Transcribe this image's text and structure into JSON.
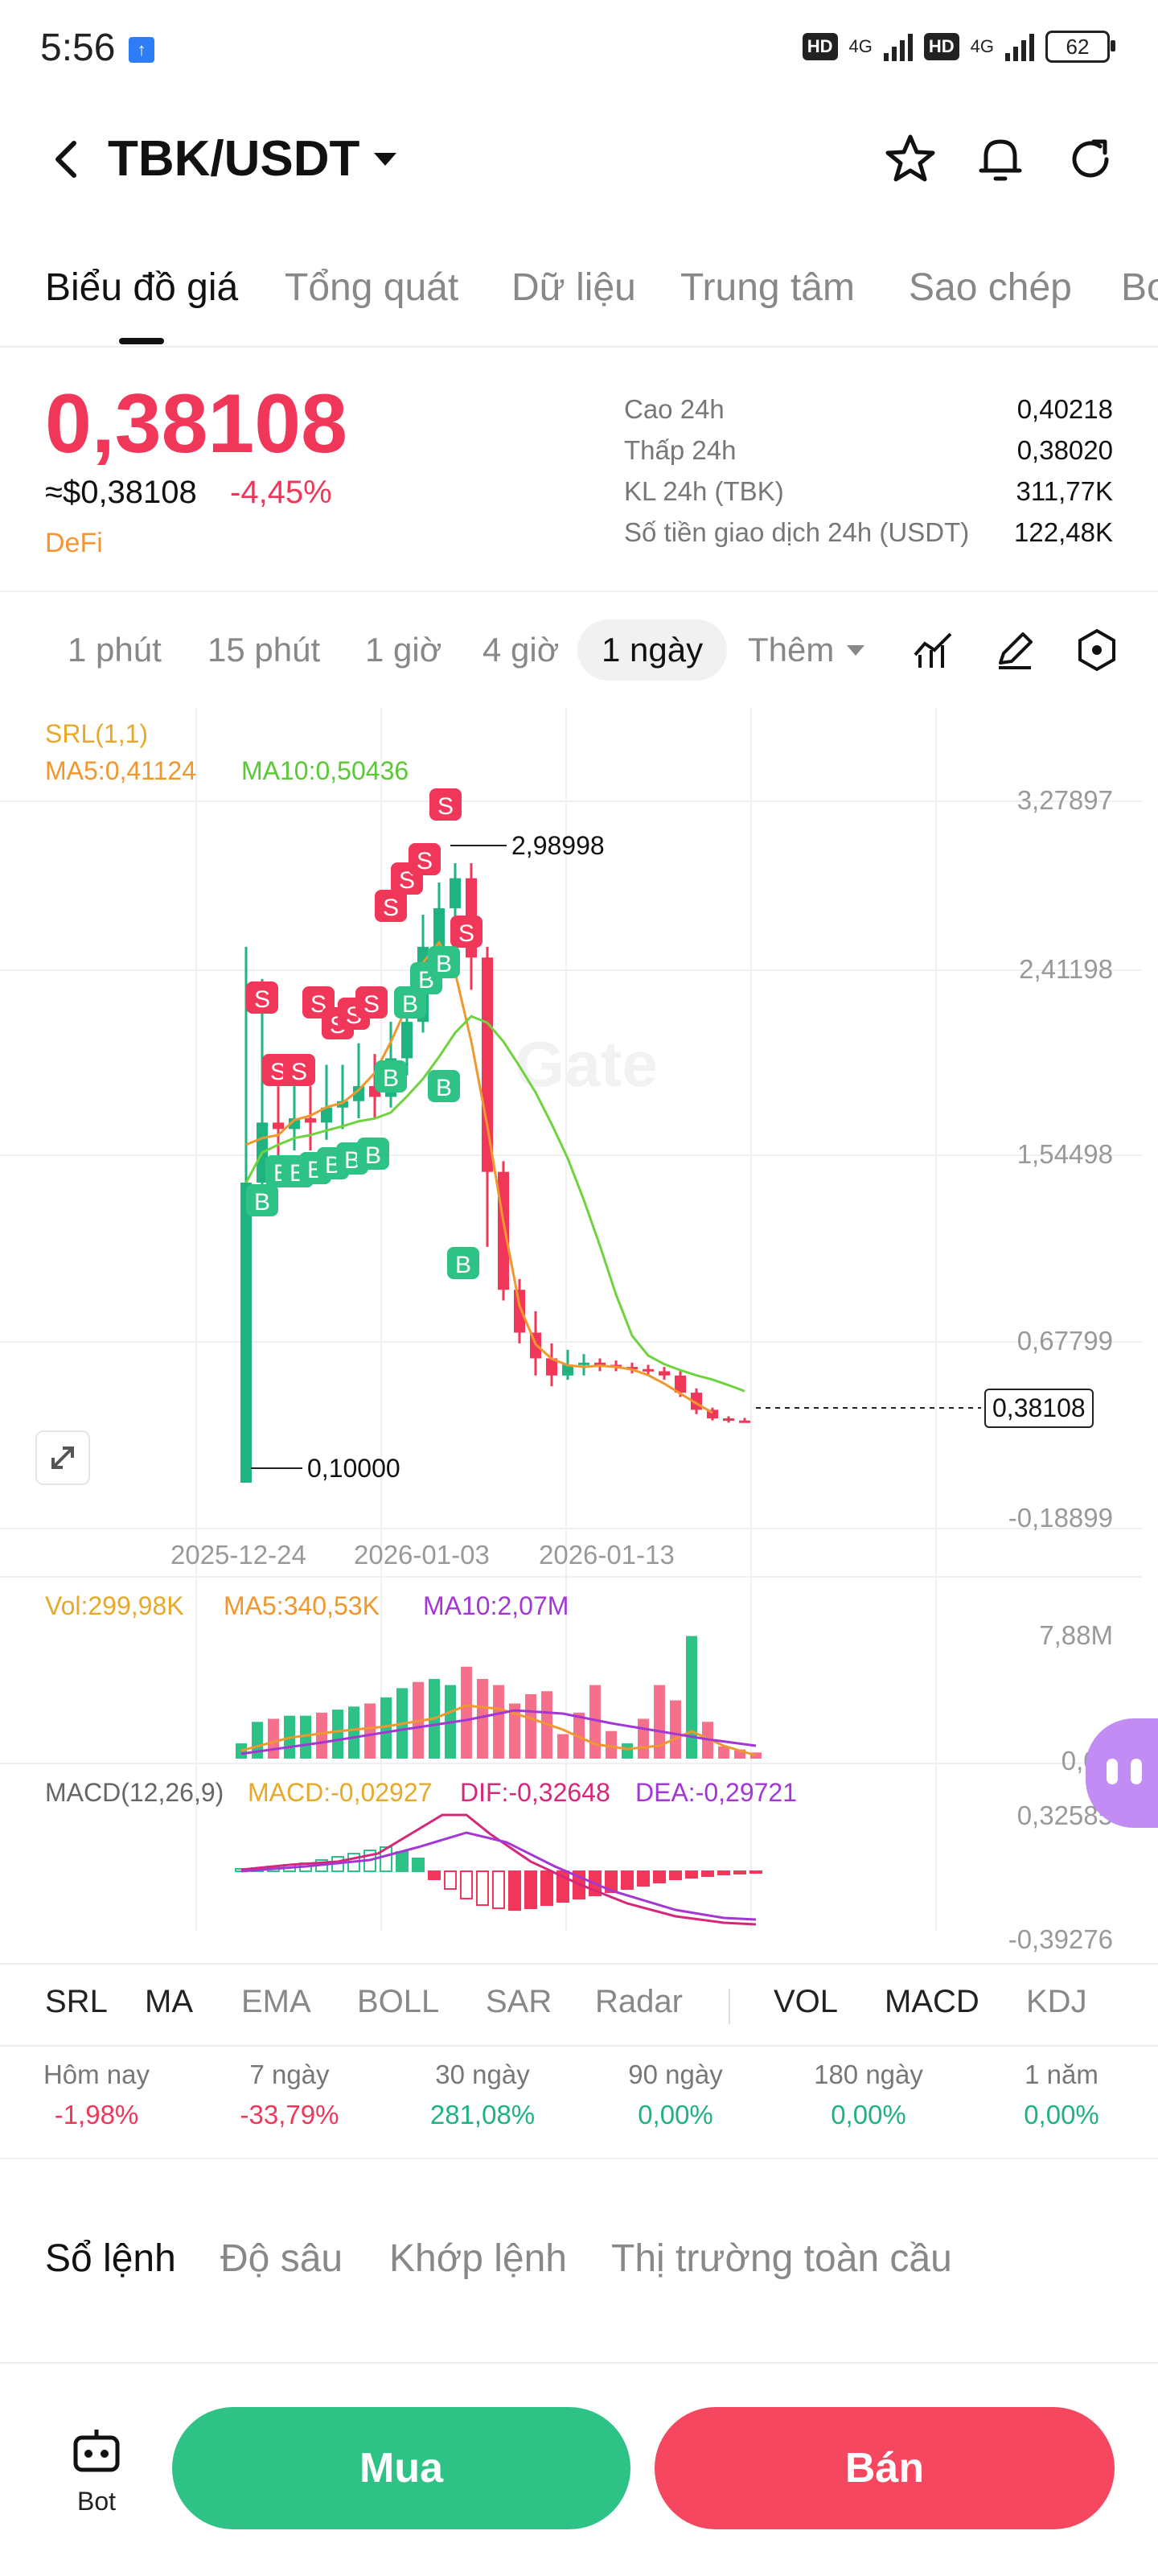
{
  "status_bar": {
    "time": "5:56",
    "network1": "4G",
    "network2": "4G",
    "hd": "HD",
    "battery": "62"
  },
  "header": {
    "pair": "TBK/USDT"
  },
  "tabs": [
    "Biểu đồ giá",
    "Tổng quát",
    "Dữ liệu",
    "Trung tâm",
    "Sao chép",
    "Bo"
  ],
  "ticker": {
    "price": "0,38108",
    "usd": "≈$0,38108",
    "change": "-4,45%",
    "tag": "DeFi",
    "stats": [
      {
        "label": "Cao 24h",
        "value": "0,40218"
      },
      {
        "label": "Thấp 24h",
        "value": "0,38020"
      },
      {
        "label": "KL 24h (TBK)",
        "value": "311,77K"
      },
      {
        "label": "Số tiền giao dịch 24h (USDT)",
        "value": "122,48K"
      }
    ]
  },
  "intervals": [
    "1 phút",
    "15 phút",
    "1 giờ",
    "4 giờ",
    "1 ngày",
    "Thêm"
  ],
  "chart": {
    "legend": {
      "srl": "SRL(1,1)",
      "ma5": "MA5:0,41124",
      "ma10": "MA10:0,50436"
    },
    "y_ticks": [
      "3,27897",
      "2,41198",
      "1,54498",
      "0,67799",
      "-0,18899"
    ],
    "x_ticks": [
      "2025-12-24",
      "2026-01-03",
      "2026-01-13"
    ],
    "high_label": "2,98998",
    "low_label": "0,10000",
    "last_price": "0,38108",
    "watermark": "Gate",
    "colors": {
      "up": "#1fb37f",
      "down": "#f0375a",
      "ma5": "#f0972e",
      "ma10": "#6fd33f"
    }
  },
  "chart_data": {
    "type": "candlestick",
    "x_ticks": [
      "2025-12-24",
      "2026-01-03",
      "2026-01-13"
    ],
    "ylim": [
      -0.18899,
      3.27897
    ],
    "candles": [
      [
        0.1,
        1.5,
        0.1,
        2.6
      ],
      [
        1.5,
        1.78,
        1.45,
        2.45
      ],
      [
        1.78,
        1.75,
        1.6,
        1.95
      ],
      [
        1.75,
        1.8,
        1.65,
        1.95
      ],
      [
        1.8,
        1.78,
        1.65,
        1.95
      ],
      [
        1.78,
        1.85,
        1.7,
        2.05
      ],
      [
        1.85,
        1.88,
        1.75,
        2.05
      ],
      [
        1.88,
        1.95,
        1.8,
        2.15
      ],
      [
        1.95,
        1.9,
        1.8,
        2.1
      ],
      [
        1.9,
        2.08,
        1.85,
        2.25
      ],
      [
        2.08,
        2.25,
        2.0,
        2.4
      ],
      [
        2.25,
        2.6,
        2.2,
        2.75
      ],
      [
        2.6,
        2.78,
        2.5,
        2.9
      ],
      [
        2.78,
        2.92,
        2.7,
        2.99
      ],
      [
        2.92,
        2.55,
        2.4,
        2.99
      ],
      [
        2.55,
        1.55,
        1.2,
        2.6
      ],
      [
        1.55,
        1.0,
        0.95,
        1.6
      ],
      [
        1.0,
        0.8,
        0.75,
        1.05
      ],
      [
        0.8,
        0.68,
        0.6,
        0.9
      ],
      [
        0.68,
        0.6,
        0.55,
        0.75
      ],
      [
        0.6,
        0.65,
        0.58,
        0.72
      ],
      [
        0.65,
        0.66,
        0.6,
        0.7
      ],
      [
        0.66,
        0.65,
        0.62,
        0.68
      ],
      [
        0.65,
        0.64,
        0.62,
        0.67
      ],
      [
        0.64,
        0.63,
        0.61,
        0.66
      ],
      [
        0.63,
        0.62,
        0.6,
        0.65
      ],
      [
        0.62,
        0.6,
        0.58,
        0.64
      ],
      [
        0.6,
        0.52,
        0.5,
        0.62
      ],
      [
        0.52,
        0.44,
        0.42,
        0.54
      ],
      [
        0.44,
        0.4,
        0.39,
        0.45
      ],
      [
        0.4,
        0.39,
        0.38,
        0.41
      ],
      [
        0.39,
        0.381,
        0.38,
        0.402
      ]
    ]
  },
  "volume": {
    "vol": "Vol:299,98K",
    "ma5": "MA5:340,53K",
    "ma10": "MA10:2,07M",
    "ticks": [
      "7,88M",
      "0,00"
    ]
  },
  "macd": {
    "title": "MACD(12,26,9)",
    "macd": "MACD:-0,02927",
    "dif": "DIF:-0,32648",
    "dea": "DEA:-0,29721",
    "ticks": [
      "0,32585",
      "-0,39276"
    ]
  },
  "indicators": [
    "SRL",
    "MA",
    "EMA",
    "BOLL",
    "SAR",
    "Radar",
    "VOL",
    "MACD",
    "KDJ"
  ],
  "performance": [
    {
      "label": "Hôm nay",
      "value": "-1,98%"
    },
    {
      "label": "7 ngày",
      "value": "-33,79%"
    },
    {
      "label": "30 ngày",
      "value": "281,08%"
    },
    {
      "label": "90 ngày",
      "value": "0,00%"
    },
    {
      "label": "180 ngày",
      "value": "0,00%"
    },
    {
      "label": "1 năm",
      "value": "0,00%"
    }
  ],
  "orderbook_tabs": [
    "Sổ lệnh",
    "Độ sâu",
    "Khớp lệnh",
    "Thị trường toàn cầu"
  ],
  "bottom": {
    "bot": "Bot",
    "buy": "Mua",
    "sell": "Bán"
  }
}
